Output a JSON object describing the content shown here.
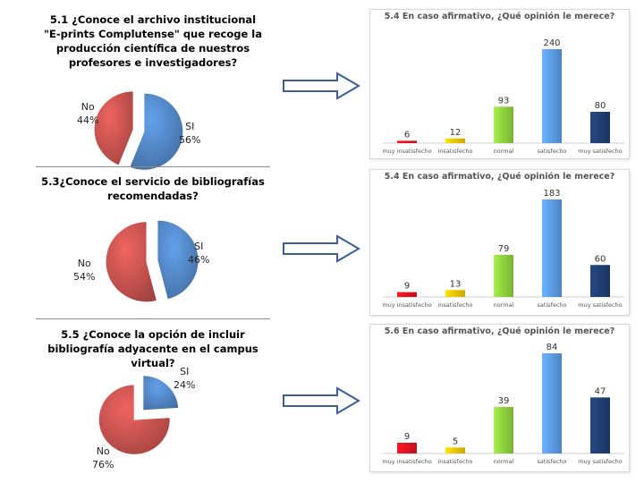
{
  "colors": {
    "pie_si": "#4f81bd",
    "pie_no": "#c0504d",
    "arrow": "#3a5f9a",
    "bars": [
      "#e0141e",
      "#f2c500",
      "#8fd13f",
      "#5b9be6",
      "#1f3f72"
    ]
  },
  "chart_data": [
    {
      "type": "pie",
      "title": "5.1 ¿Conoce el archivo institucional \"E-prints Complutense\" que recoge la producción científica de nuestros profesores e investigadores?",
      "slices": [
        {
          "label": "SI",
          "value": 56,
          "display": "56%"
        },
        {
          "label": "No",
          "value": 44,
          "display": "44%"
        }
      ]
    },
    {
      "type": "bar",
      "title": "5.4 En caso afirmativo, ¿Qué opinión le merece?",
      "categories": [
        "muy insatisfecho",
        "insatisfecho",
        "normal",
        "satisfecho",
        "muy satisfecho"
      ],
      "values": [
        6,
        12,
        93,
        240,
        80
      ],
      "ylim": [
        0,
        240
      ]
    },
    {
      "type": "pie",
      "title": "5.3¿Conoce el servicio de bibliografías recomendadas?",
      "slices": [
        {
          "label": "SI",
          "value": 46,
          "display": "46%"
        },
        {
          "label": "No",
          "value": 54,
          "display": "54%"
        }
      ]
    },
    {
      "type": "bar",
      "title": "5.4 En caso afirmativo, ¿Qué opinión le merece?",
      "categories": [
        "muy insatisfecho",
        "insatisfecho",
        "normal",
        "satisfecho",
        "muy satisfecho"
      ],
      "values": [
        9,
        13,
        79,
        183,
        60
      ],
      "ylim": [
        0,
        183
      ]
    },
    {
      "type": "pie",
      "title": "5.5 ¿Conoce la opción de incluir bibliografía adyacente en el campus virtual?",
      "slices": [
        {
          "label": "SI",
          "value": 24,
          "display": "24%"
        },
        {
          "label": "No",
          "value": 76,
          "display": "76%"
        }
      ]
    },
    {
      "type": "bar",
      "title": "5.6 En caso afirmativo, ¿Qué opinión le merece?",
      "categories": [
        "muy insatisfecho",
        "insatisfecho",
        "normal",
        "satisfecho",
        "muy satisfecho"
      ],
      "values": [
        9,
        5,
        39,
        84,
        47
      ],
      "ylim": [
        0,
        84
      ]
    }
  ]
}
